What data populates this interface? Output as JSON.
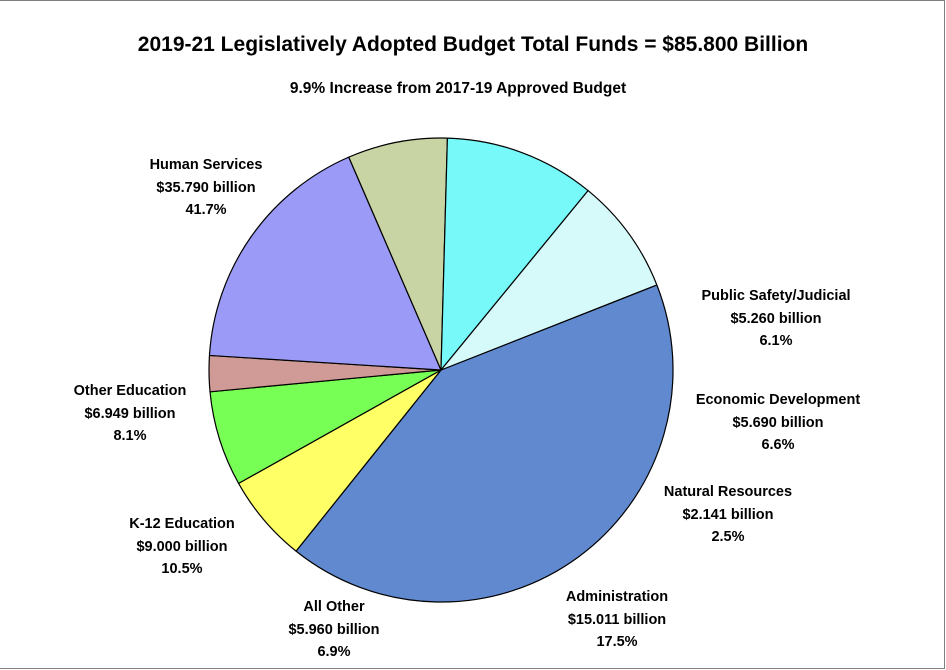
{
  "chart_data": {
    "type": "pie",
    "title": "2019-21 Legislatively Adopted Budget Total Funds = $85.800 Billion",
    "subtitle": "9.9% Increase from 2017-19 Approved Budget",
    "slices": [
      {
        "name": "Human Services",
        "amount": "$35.790 billion",
        "percent": "41.7%",
        "value": 35.79,
        "color": "#6089cf"
      },
      {
        "name": "Public Safety/Judicial",
        "amount": "$5.260 billion",
        "percent": "6.1%",
        "value": 5.26,
        "color": "#ffff66"
      },
      {
        "name": "Economic Development",
        "amount": "$5.690 billion",
        "percent": "6.6%",
        "value": 5.69,
        "color": "#77ff55"
      },
      {
        "name": "Natural Resources",
        "amount": "$2.141 billion",
        "percent": "2.5%",
        "value": 2.141,
        "color": "#d09a96"
      },
      {
        "name": "Administration",
        "amount": "$15.011 billion",
        "percent": "17.5%",
        "value": 15.011,
        "color": "#9b9bf7"
      },
      {
        "name": "All Other",
        "amount": "$5.960 billion",
        "percent": "6.9%",
        "value": 5.96,
        "color": "#c8d4a4"
      },
      {
        "name": "K-12 Education",
        "amount": "$9.000 billion",
        "percent": "10.5%",
        "value": 9.0,
        "color": "#77f9f9"
      },
      {
        "name": "Other Education",
        "amount": "$6.949 billion",
        "percent": "8.1%",
        "value": 6.949,
        "color": "#d6fafa"
      }
    ]
  }
}
